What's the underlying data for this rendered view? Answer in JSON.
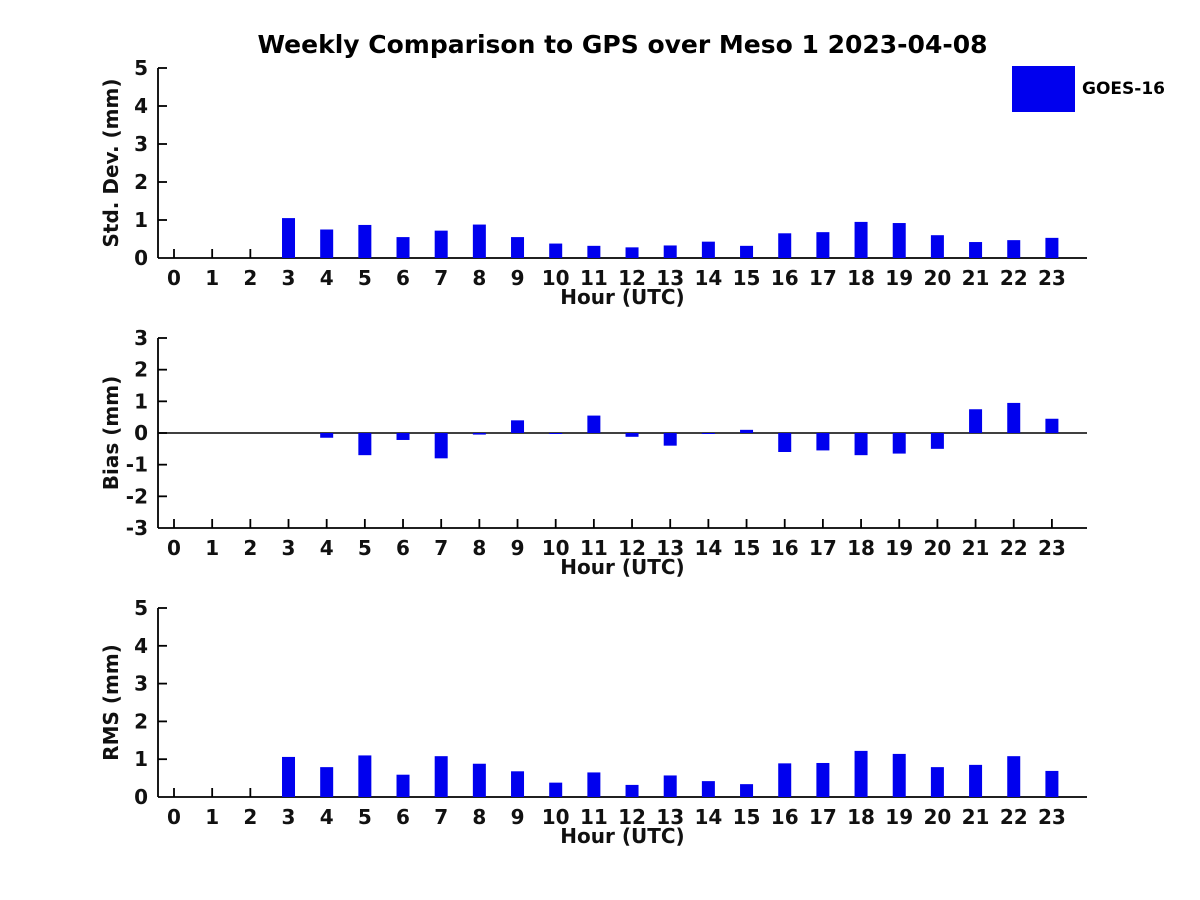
{
  "title": "Weekly Comparison to GPS over Meso 1 2023-04-08",
  "legend": {
    "label": "GOES-16",
    "color": "#0000EE"
  },
  "chart_data": [
    {
      "type": "bar",
      "id": "std-dev",
      "ylabel": "Std. Dev. (mm)",
      "xlabel": "Hour (UTC)",
      "ylim": [
        0,
        5
      ],
      "yticks": [
        0,
        1,
        2,
        3,
        4,
        5
      ],
      "grid": false,
      "legend_position": "upper right outside",
      "series_name": "GOES-16",
      "bar_color": "#0000EE",
      "categories": [
        "0",
        "1",
        "2",
        "3",
        "4",
        "5",
        "6",
        "7",
        "8",
        "9",
        "10",
        "11",
        "12",
        "13",
        "14",
        "15",
        "16",
        "17",
        "18",
        "19",
        "20",
        "21",
        "22",
        "23"
      ],
      "values": [
        null,
        null,
        null,
        1.05,
        0.75,
        0.87,
        0.55,
        0.72,
        0.88,
        0.55,
        0.38,
        0.32,
        0.28,
        0.33,
        0.43,
        0.32,
        0.65,
        0.68,
        0.95,
        0.92,
        0.6,
        0.42,
        0.47,
        0.53
      ]
    },
    {
      "type": "bar",
      "id": "bias",
      "ylabel": "Bias (mm)",
      "xlabel": "Hour (UTC)",
      "ylim": [
        -3,
        3
      ],
      "yticks": [
        -3,
        -2,
        -1,
        0,
        1,
        2,
        3
      ],
      "grid": false,
      "zero_line": true,
      "series_name": "GOES-16",
      "bar_color": "#0000EE",
      "categories": [
        "0",
        "1",
        "2",
        "3",
        "4",
        "5",
        "6",
        "7",
        "8",
        "9",
        "10",
        "11",
        "12",
        "13",
        "14",
        "15",
        "16",
        "17",
        "18",
        "19",
        "20",
        "21",
        "22",
        "23"
      ],
      "values": [
        null,
        null,
        null,
        0.0,
        -0.15,
        -0.7,
        -0.22,
        -0.8,
        -0.05,
        0.4,
        -0.02,
        0.55,
        -0.12,
        -0.4,
        -0.03,
        0.1,
        -0.6,
        -0.55,
        -0.7,
        -0.65,
        -0.5,
        0.75,
        0.95,
        0.45
      ]
    },
    {
      "type": "bar",
      "id": "rms",
      "ylabel": "RMS (mm)",
      "xlabel": "Hour (UTC)",
      "ylim": [
        0,
        5
      ],
      "yticks": [
        0,
        1,
        2,
        3,
        4,
        5
      ],
      "grid": false,
      "series_name": "GOES-16",
      "bar_color": "#0000EE",
      "categories": [
        "0",
        "1",
        "2",
        "3",
        "4",
        "5",
        "6",
        "7",
        "8",
        "9",
        "10",
        "11",
        "12",
        "13",
        "14",
        "15",
        "16",
        "17",
        "18",
        "19",
        "20",
        "21",
        "22",
        "23"
      ],
      "values": [
        null,
        null,
        null,
        1.06,
        0.79,
        1.1,
        0.59,
        1.08,
        0.88,
        0.68,
        0.38,
        0.65,
        0.32,
        0.57,
        0.42,
        0.34,
        0.89,
        0.9,
        1.22,
        1.14,
        0.79,
        0.85,
        1.08,
        0.69
      ]
    }
  ]
}
